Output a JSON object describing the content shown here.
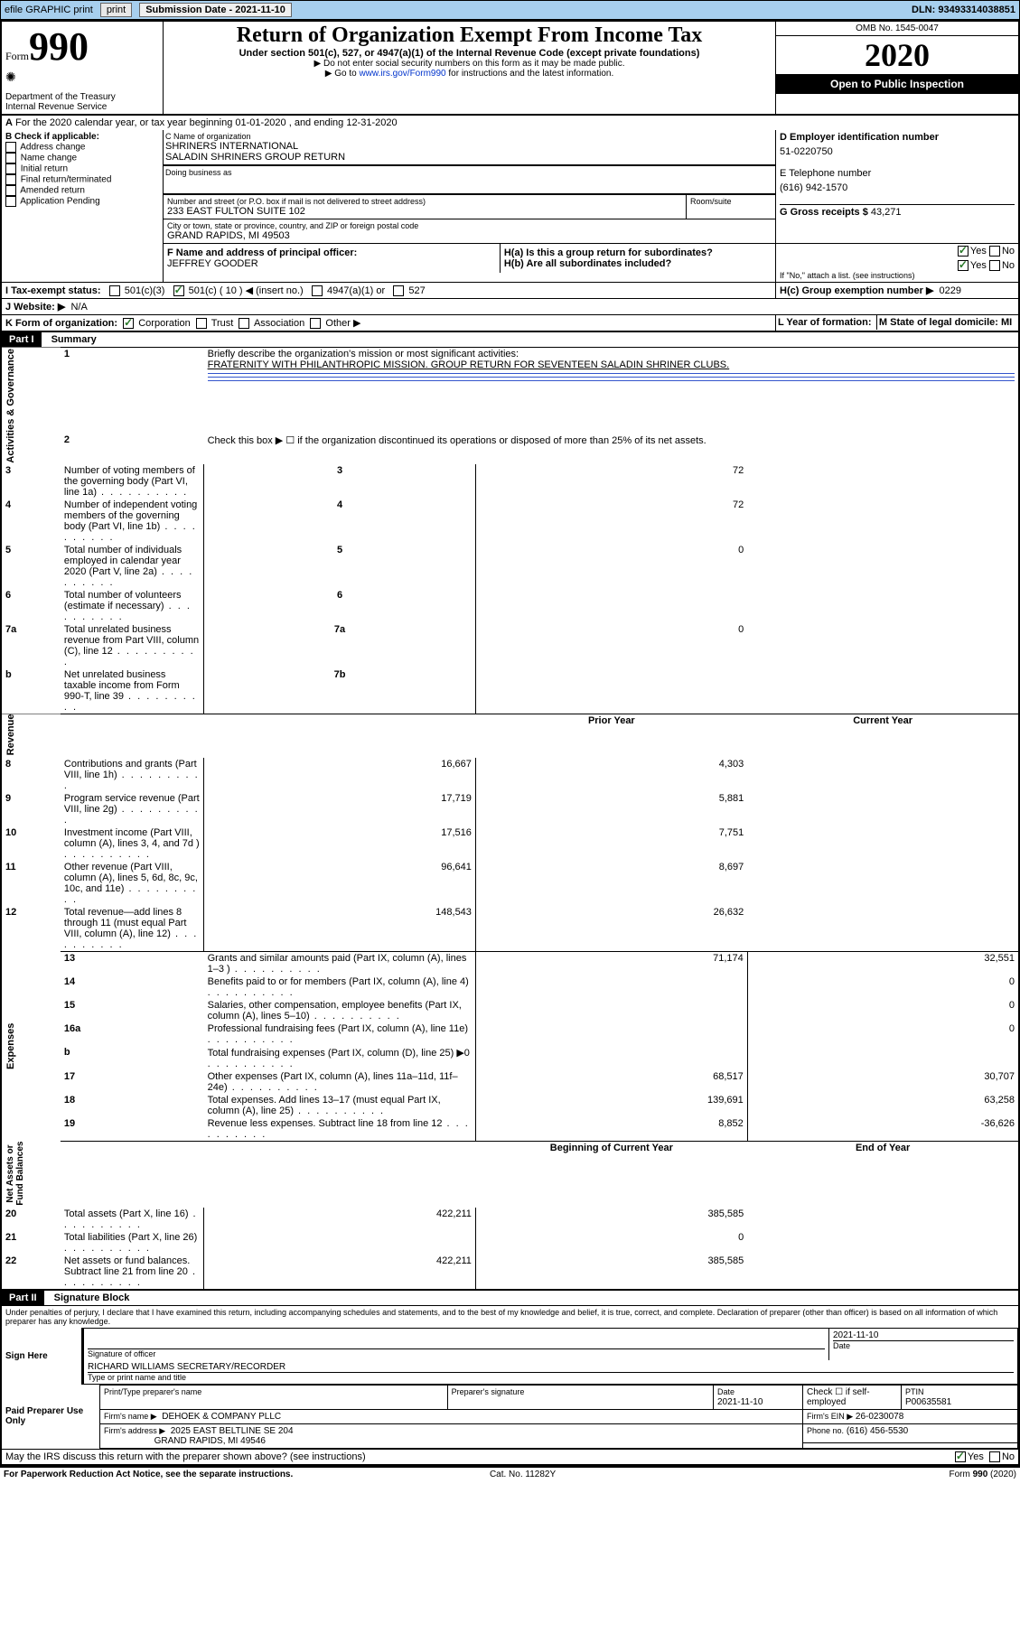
{
  "topbar": {
    "efile": "efile GRAPHIC print",
    "submission_label": "Submission Date - 2021-11-10",
    "dln": "DLN: 93493314038851"
  },
  "header": {
    "form_word": "Form",
    "form_num": "990",
    "dept": "Department of the Treasury\nInternal Revenue Service",
    "title": "Return of Organization Exempt From Income Tax",
    "sub1": "Under section 501(c), 527, or 4947(a)(1) of the Internal Revenue Code (except private foundations)",
    "sub2": "▶ Do not enter social security numbers on this form as it may be made public.",
    "sub3_pre": "▶ Go to ",
    "sub3_link": "www.irs.gov/Form990",
    "sub3_post": " for instructions and the latest information.",
    "omb": "OMB No. 1545-0047",
    "year": "2020",
    "open": "Open to Public Inspection"
  },
  "a_line": "For the 2020 calendar year, or tax year beginning 01-01-2020   , and ending 12-31-2020",
  "box_b": {
    "title": "B Check if applicable:",
    "items": [
      "Address change",
      "Name change",
      "Initial return",
      "Final return/terminated",
      "Amended return",
      "Application Pending"
    ]
  },
  "box_c": {
    "label": "C Name of organization",
    "name": "SHRINERS INTERNATIONAL\nSALADIN SHRINERS GROUP RETURN",
    "dba_label": "Doing business as",
    "addr_label": "Number and street (or P.O. box if mail is not delivered to street address)",
    "room": "Room/suite",
    "addr": "233 EAST FULTON SUITE 102",
    "city_label": "City or town, state or province, country, and ZIP or foreign postal code",
    "city": "GRAND RAPIDS, MI  49503"
  },
  "box_d": {
    "label": "D Employer identification number",
    "val": "51-0220750"
  },
  "box_e": {
    "label": "E Telephone number",
    "val": "(616) 942-1570"
  },
  "box_g": {
    "label": "G Gross receipts $",
    "val": "43,271"
  },
  "box_f": {
    "label": "F  Name and address of principal officer:",
    "val": "JEFFREY GOODER"
  },
  "box_h": {
    "a": "H(a)  Is this a group return for subordinates?",
    "b": "H(b)  Are all subordinates included?",
    "b_note": "If \"No,\" attach a list. (see instructions)",
    "c": "H(c)  Group exemption number ▶",
    "c_val": "0229"
  },
  "box_i": {
    "label": "I   Tax-exempt status:",
    "opts": [
      "501(c)(3)",
      "501(c) ( 10 ) ◀ (insert no.)",
      "4947(a)(1) or",
      "527"
    ]
  },
  "box_j": {
    "label": "J   Website: ▶",
    "val": "N/A"
  },
  "box_k": {
    "label": "K Form of organization:",
    "opts": [
      "Corporation",
      "Trust",
      "Association",
      "Other ▶"
    ]
  },
  "box_l": {
    "label": "L Year of formation:"
  },
  "box_m": {
    "label": "M State of legal domicile: MI"
  },
  "part1": {
    "header": "Part I",
    "title": "Summary"
  },
  "summary": {
    "l1": "Briefly describe the organization's mission or most significant activities:",
    "l1v": "FRATERNITY WITH PHILANTHROPIC MISSION. GROUP RETURN FOR SEVENTEEN SALADIN SHRINER CLUBS.",
    "l2": "Check this box ▶ ☐  if the organization discontinued its operations or disposed of more than 25% of its net assets.",
    "rows_gov": [
      {
        "n": "3",
        "t": "Number of voting members of the governing body (Part VI, line 1a)",
        "b": "3",
        "v": "72"
      },
      {
        "n": "4",
        "t": "Number of independent voting members of the governing body (Part VI, line 1b)",
        "b": "4",
        "v": "72"
      },
      {
        "n": "5",
        "t": "Total number of individuals employed in calendar year 2020 (Part V, line 2a)",
        "b": "5",
        "v": "0"
      },
      {
        "n": "6",
        "t": "Total number of volunteers (estimate if necessary)",
        "b": "6",
        "v": ""
      },
      {
        "n": "7a",
        "t": "Total unrelated business revenue from Part VIII, column (C), line 12",
        "b": "7a",
        "v": "0"
      },
      {
        "n": "b",
        "t": "Net unrelated business taxable income from Form 990-T, line 39",
        "b": "7b",
        "v": ""
      }
    ],
    "col_hdrs": {
      "prior": "Prior Year",
      "current": "Current Year",
      "begin": "Beginning of Current Year",
      "end": "End of Year"
    },
    "rows_rev": [
      {
        "n": "8",
        "t": "Contributions and grants (Part VIII, line 1h)",
        "p": "16,667",
        "c": "4,303"
      },
      {
        "n": "9",
        "t": "Program service revenue (Part VIII, line 2g)",
        "p": "17,719",
        "c": "5,881"
      },
      {
        "n": "10",
        "t": "Investment income (Part VIII, column (A), lines 3, 4, and 7d )",
        "p": "17,516",
        "c": "7,751"
      },
      {
        "n": "11",
        "t": "Other revenue (Part VIII, column (A), lines 5, 6d, 8c, 9c, 10c, and 11e)",
        "p": "96,641",
        "c": "8,697"
      },
      {
        "n": "12",
        "t": "Total revenue—add lines 8 through 11 (must equal Part VIII, column (A), line 12)",
        "p": "148,543",
        "c": "26,632"
      }
    ],
    "rows_exp": [
      {
        "n": "13",
        "t": "Grants and similar amounts paid (Part IX, column (A), lines 1–3 )",
        "p": "71,174",
        "c": "32,551"
      },
      {
        "n": "14",
        "t": "Benefits paid to or for members (Part IX, column (A), line 4)",
        "p": "",
        "c": "0"
      },
      {
        "n": "15",
        "t": "Salaries, other compensation, employee benefits (Part IX, column (A), lines 5–10)",
        "p": "",
        "c": "0"
      },
      {
        "n": "16a",
        "t": "Professional fundraising fees (Part IX, column (A), line 11e)",
        "p": "",
        "c": "0"
      },
      {
        "n": "b",
        "t": "Total fundraising expenses (Part IX, column (D), line 25) ▶0",
        "p": "",
        "c": ""
      },
      {
        "n": "17",
        "t": "Other expenses (Part IX, column (A), lines 11a–11d, 11f–24e)",
        "p": "68,517",
        "c": "30,707"
      },
      {
        "n": "18",
        "t": "Total expenses. Add lines 13–17 (must equal Part IX, column (A), line 25)",
        "p": "139,691",
        "c": "63,258"
      },
      {
        "n": "19",
        "t": "Revenue less expenses. Subtract line 18 from line 12",
        "p": "8,852",
        "c": "-36,626"
      }
    ],
    "rows_net": [
      {
        "n": "20",
        "t": "Total assets (Part X, line 16)",
        "p": "422,211",
        "c": "385,585"
      },
      {
        "n": "21",
        "t": "Total liabilities (Part X, line 26)",
        "p": "",
        "c": "0"
      },
      {
        "n": "22",
        "t": "Net assets or fund balances. Subtract line 21 from line 20",
        "p": "422,211",
        "c": "385,585"
      }
    ],
    "vlabels": {
      "gov": "Activities & Governance",
      "rev": "Revenue",
      "exp": "Expenses",
      "net": "Net Assets or\nFund Balances"
    }
  },
  "part2": {
    "header": "Part II",
    "title": "Signature Block",
    "penalty": "Under penalties of perjury, I declare that I have examined this return, including accompanying schedules and statements, and to the best of my knowledge and belief, it is true, correct, and complete. Declaration of preparer (other than officer) is based on all information of which preparer has any knowledge."
  },
  "sign": {
    "left": "Sign Here",
    "sig_label": "Signature of officer",
    "date_label": "Date",
    "date": "2021-11-10",
    "name": "RICHARD WILLIAMS  SECRETARY/RECORDER",
    "name_label": "Type or print name and title"
  },
  "prep": {
    "left": "Paid Preparer Use Only",
    "h1": "Print/Type preparer's name",
    "h2": "Preparer's signature",
    "h3": "Date",
    "h3v": "2021-11-10",
    "h4": "Check ☐ if self-employed",
    "h5": "PTIN",
    "h5v": "P00635581",
    "firm_label": "Firm's name    ▶",
    "firm": "DEHOEK & COMPANY PLLC",
    "ein_label": "Firm's EIN ▶",
    "ein": "26-0230078",
    "addr_label": "Firm's address ▶",
    "addr": "2025 EAST BELTLINE SE 204",
    "city": "GRAND RAPIDS, MI  49546",
    "phone_label": "Phone no.",
    "phone": "(616) 456-5530",
    "discuss": "May the IRS discuss this return with the preparer shown above? (see instructions)"
  },
  "footer": {
    "left": "For Paperwork Reduction Act Notice, see the separate instructions.",
    "mid": "Cat. No. 11282Y",
    "right": "Form 990 (2020)"
  }
}
